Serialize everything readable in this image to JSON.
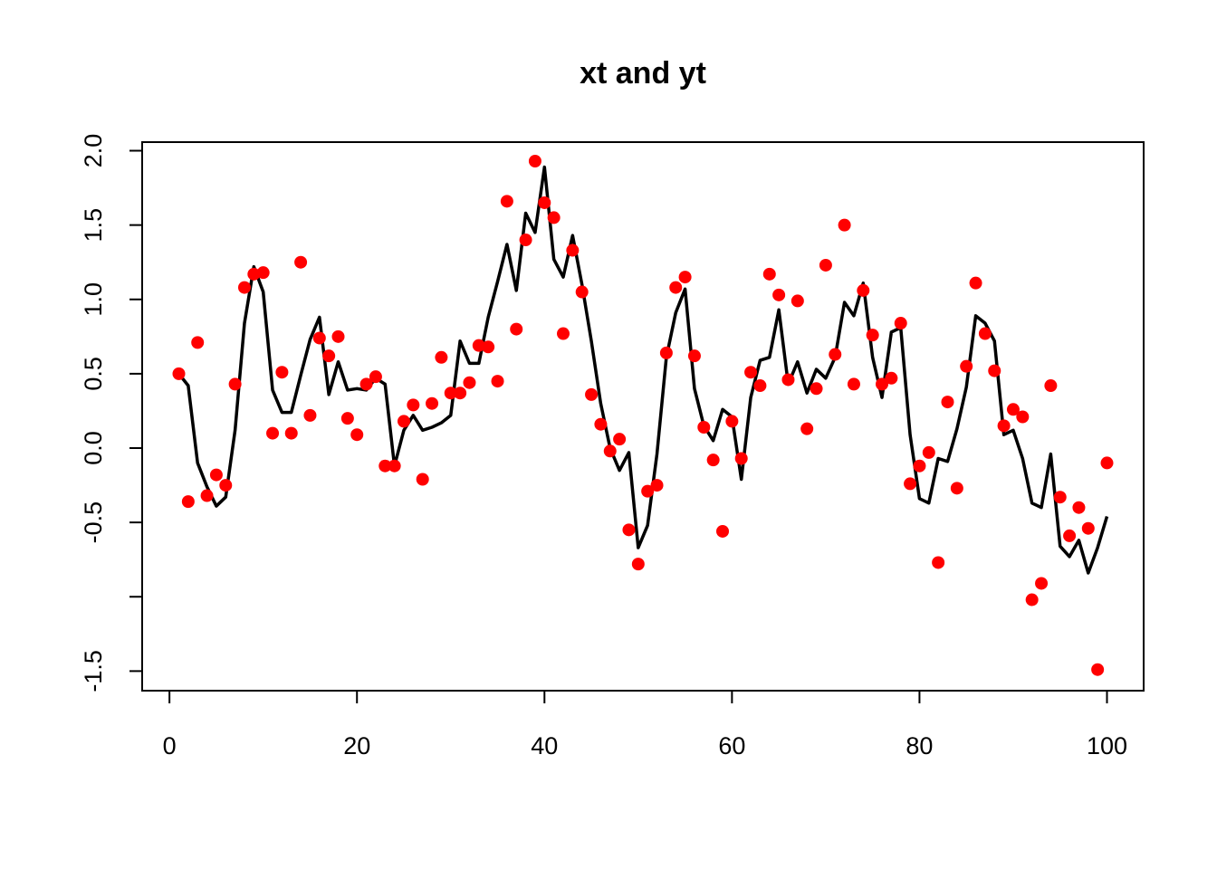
{
  "chart_data": {
    "type": "line",
    "title": "xt and yt",
    "xlabel": "",
    "ylabel": "",
    "xlim": [
      1,
      100
    ],
    "ylim": [
      -1.5,
      2.0
    ],
    "x_ticks": [
      0,
      20,
      40,
      60,
      80,
      100
    ],
    "x_tick_labels": [
      "0",
      "20",
      "40",
      "60",
      "80",
      "100"
    ],
    "y_ticks": [
      2.0,
      1.5,
      1.0,
      0.5,
      0.0,
      -0.5,
      -1.0,
      -1.5
    ],
    "y_tick_labels": [
      "2.0",
      "1.5",
      "1.0",
      "0.5",
      "0.0",
      "-0.5",
      "",
      "-1.5"
    ],
    "grid": false,
    "legend": "none",
    "line_color": "#000000",
    "point_color": "#ff0000",
    "x": [
      1,
      2,
      3,
      4,
      5,
      6,
      7,
      8,
      9,
      10,
      11,
      12,
      13,
      14,
      15,
      16,
      17,
      18,
      19,
      20,
      21,
      22,
      23,
      24,
      25,
      26,
      27,
      28,
      29,
      30,
      31,
      32,
      33,
      34,
      35,
      36,
      37,
      38,
      39,
      40,
      41,
      42,
      43,
      44,
      45,
      46,
      47,
      48,
      49,
      50,
      51,
      52,
      53,
      54,
      55,
      56,
      57,
      58,
      59,
      60,
      61,
      62,
      63,
      64,
      65,
      66,
      67,
      68,
      69,
      70,
      71,
      72,
      73,
      74,
      75,
      76,
      77,
      78,
      79,
      80,
      81,
      82,
      83,
      84,
      85,
      86,
      87,
      88,
      89,
      90,
      91,
      92,
      93,
      94,
      95,
      96,
      97,
      98,
      99,
      100
    ],
    "series": [
      {
        "style": "line",
        "values": [
          0.5,
          0.42,
          -0.1,
          -0.26,
          -0.39,
          -0.33,
          0.12,
          0.84,
          1.22,
          1.05,
          0.39,
          0.24,
          0.24,
          0.49,
          0.73,
          0.88,
          0.36,
          0.58,
          0.39,
          0.4,
          0.39,
          0.47,
          0.43,
          -0.12,
          0.12,
          0.22,
          0.12,
          0.14,
          0.17,
          0.22,
          0.72,
          0.57,
          0.57,
          0.88,
          1.12,
          1.37,
          1.06,
          1.58,
          1.45,
          1.89,
          1.27,
          1.15,
          1.43,
          1.1,
          0.72,
          0.3,
          0.0,
          -0.15,
          -0.03,
          -0.67,
          -0.52,
          -0.04,
          0.61,
          0.91,
          1.07,
          0.4,
          0.15,
          0.05,
          0.26,
          0.21,
          -0.21,
          0.34,
          0.59,
          0.61,
          0.93,
          0.43,
          0.58,
          0.37,
          0.53,
          0.47,
          0.61,
          0.98,
          0.89,
          1.11,
          0.61,
          0.34,
          0.78,
          0.81,
          0.09,
          -0.34,
          -0.37,
          -0.07,
          -0.09,
          0.13,
          0.41,
          0.89,
          0.84,
          0.72,
          0.09,
          0.12,
          -0.07,
          -0.37,
          -0.4,
          -0.04,
          -0.66,
          -0.73,
          -0.62,
          -0.84,
          -0.67,
          -0.46
        ]
      },
      {
        "style": "points",
        "values": [
          0.5,
          -0.36,
          0.71,
          -0.32,
          -0.18,
          -0.25,
          0.43,
          1.08,
          1.17,
          1.18,
          0.1,
          0.51,
          0.1,
          1.25,
          0.22,
          0.74,
          0.62,
          0.75,
          0.2,
          0.09,
          0.43,
          0.48,
          -0.12,
          -0.12,
          0.18,
          0.29,
          -0.21,
          0.3,
          0.61,
          0.37,
          0.37,
          0.44,
          0.69,
          0.68,
          0.45,
          1.66,
          0.8,
          1.4,
          1.93,
          1.65,
          1.55,
          0.77,
          1.33,
          1.05,
          0.36,
          0.16,
          -0.02,
          0.06,
          -0.55,
          -0.78,
          -0.29,
          -0.25,
          0.64,
          1.08,
          1.15,
          0.62,
          0.14,
          -0.08,
          -0.56,
          0.18,
          -0.07,
          0.51,
          0.42,
          1.17,
          1.03,
          0.46,
          0.99,
          0.13,
          0.4,
          1.23,
          0.63,
          1.5,
          0.43,
          1.06,
          0.76,
          0.43,
          0.47,
          0.84,
          -0.24,
          -0.12,
          -0.03,
          -0.77,
          0.31,
          -0.27,
          0.55,
          1.11,
          0.77,
          0.52,
          0.15,
          0.26,
          0.21,
          -1.02,
          -0.91,
          0.42,
          -0.33,
          -0.59,
          -0.4,
          -0.54,
          -1.49,
          -0.1
        ]
      }
    ]
  }
}
